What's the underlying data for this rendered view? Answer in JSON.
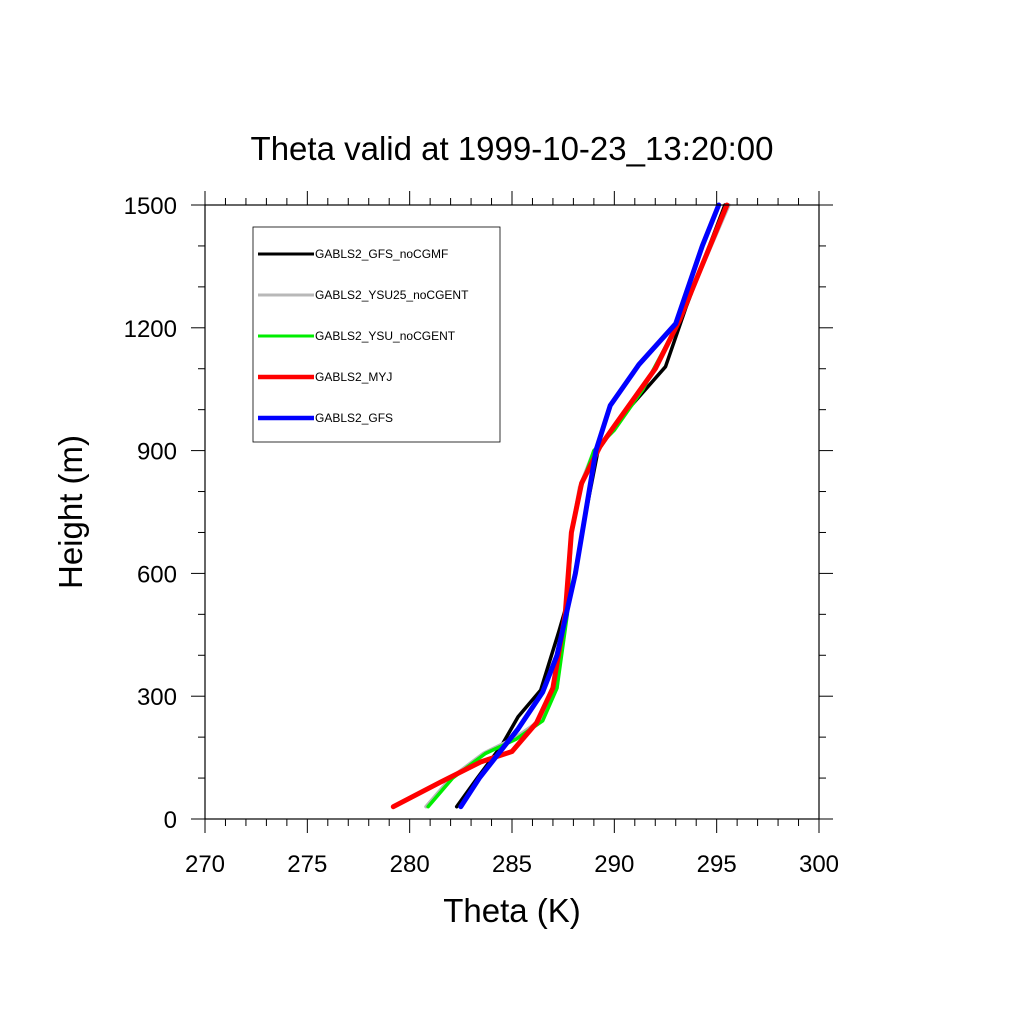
{
  "chart_data": {
    "type": "line",
    "title": "Theta valid at 1999-10-23_13:20:00",
    "xlabel": "Theta (K)",
    "ylabel": "Height (m)",
    "xlim": [
      270,
      300
    ],
    "ylim": [
      0,
      1500
    ],
    "xticks": [
      270,
      275,
      280,
      285,
      290,
      295,
      300
    ],
    "yticks": [
      0,
      300,
      600,
      900,
      1200,
      1500
    ],
    "xtick_labels": [
      "270",
      "275",
      "280",
      "285",
      "290",
      "295",
      "300"
    ],
    "ytick_labels": [
      "0",
      "300",
      "600",
      "900",
      "1200",
      "1500"
    ],
    "legend_position": "top-left",
    "series": [
      {
        "name": "GABLS2_GFS_noCGMF",
        "color": "#000000",
        "points": [
          [
            282.3,
            30
          ],
          [
            283.3,
            100
          ],
          [
            284.5,
            180
          ],
          [
            285.3,
            250
          ],
          [
            286.4,
            315
          ],
          [
            287.3,
            460
          ],
          [
            288.0,
            580
          ],
          [
            288.5,
            720
          ],
          [
            289.2,
            900
          ],
          [
            290.3,
            980
          ],
          [
            292.5,
            1105
          ],
          [
            293.5,
            1250
          ],
          [
            295.4,
            1500
          ]
        ]
      },
      {
        "name": "GABLS2_YSU25_noCGENT",
        "color": "#b8b8b8",
        "points": [
          [
            280.8,
            30
          ],
          [
            282.0,
            100
          ],
          [
            283.6,
            160
          ],
          [
            285.2,
            200
          ],
          [
            286.5,
            245
          ],
          [
            287.2,
            320
          ],
          [
            287.6,
            500
          ],
          [
            287.9,
            700
          ],
          [
            288.3,
            810
          ],
          [
            289.0,
            900
          ],
          [
            290.0,
            950
          ],
          [
            291.5,
            1060
          ],
          [
            293.0,
            1200
          ],
          [
            295.6,
            1500
          ]
        ]
      },
      {
        "name": "GABLS2_YSU_noCGENT",
        "color": "#00ee00",
        "points": [
          [
            280.9,
            30
          ],
          [
            282.1,
            100
          ],
          [
            283.7,
            160
          ],
          [
            285.2,
            195
          ],
          [
            286.5,
            240
          ],
          [
            287.2,
            320
          ],
          [
            287.7,
            500
          ],
          [
            287.9,
            700
          ],
          [
            288.3,
            800
          ],
          [
            289.0,
            900
          ],
          [
            290.0,
            950
          ],
          [
            291.4,
            1050
          ],
          [
            293.0,
            1200
          ],
          [
            295.5,
            1500
          ]
        ]
      },
      {
        "name": "GABLS2_MYJ",
        "color": "#ff0000",
        "points": [
          [
            279.2,
            30
          ],
          [
            281.5,
            90
          ],
          [
            283.5,
            140
          ],
          [
            285.0,
            165
          ],
          [
            286.2,
            235
          ],
          [
            287.0,
            320
          ],
          [
            287.6,
            500
          ],
          [
            287.9,
            700
          ],
          [
            288.4,
            820
          ],
          [
            289.3,
            910
          ],
          [
            290.0,
            960
          ],
          [
            292.0,
            1100
          ],
          [
            293.2,
            1220
          ],
          [
            295.5,
            1500
          ]
        ]
      },
      {
        "name": "GABLS2_GFS",
        "color": "#0000ff",
        "points": [
          [
            282.5,
            30
          ],
          [
            283.4,
            100
          ],
          [
            284.5,
            170
          ],
          [
            285.3,
            220
          ],
          [
            286.5,
            310
          ],
          [
            287.2,
            400
          ],
          [
            288.1,
            600
          ],
          [
            288.6,
            750
          ],
          [
            289.1,
            900
          ],
          [
            289.8,
            1010
          ],
          [
            291.2,
            1110
          ],
          [
            293.0,
            1210
          ],
          [
            294.3,
            1400
          ],
          [
            295.1,
            1500
          ]
        ]
      }
    ]
  }
}
